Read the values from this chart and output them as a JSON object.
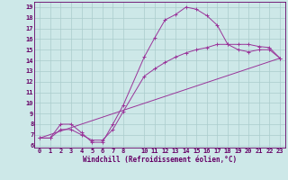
{
  "xlabel": "Windchill (Refroidissement éolien,°C)",
  "bg_color": "#cde8e8",
  "line_color": "#993399",
  "grid_color": "#aacccc",
  "xlim": [
    -0.5,
    23.5
  ],
  "ylim": [
    5.8,
    19.5
  ],
  "xticks": [
    0,
    1,
    2,
    3,
    4,
    5,
    6,
    7,
    8,
    10,
    11,
    12,
    13,
    14,
    15,
    16,
    17,
    18,
    19,
    20,
    21,
    22,
    23
  ],
  "yticks": [
    6,
    7,
    8,
    9,
    10,
    11,
    12,
    13,
    14,
    15,
    16,
    17,
    18,
    19
  ],
  "line1_x": [
    0,
    1,
    2,
    3,
    4,
    5,
    6,
    7,
    8,
    10,
    11,
    12,
    13,
    14,
    15,
    16,
    17,
    18,
    19,
    20,
    21,
    22,
    23
  ],
  "line1_y": [
    6.7,
    6.7,
    8.0,
    8.0,
    7.2,
    6.3,
    6.3,
    8.0,
    9.8,
    14.3,
    16.1,
    17.8,
    18.3,
    19.0,
    18.8,
    18.2,
    17.3,
    15.5,
    15.0,
    14.8,
    15.0,
    15.0,
    14.2
  ],
  "line2_x": [
    0,
    1,
    2,
    3,
    4,
    5,
    6,
    7,
    8,
    10,
    11,
    12,
    13,
    14,
    15,
    16,
    17,
    18,
    19,
    20,
    21,
    22,
    23
  ],
  "line2_y": [
    6.7,
    6.7,
    7.5,
    7.5,
    7.0,
    6.5,
    6.5,
    7.5,
    9.2,
    12.5,
    13.2,
    13.8,
    14.3,
    14.7,
    15.0,
    15.2,
    15.5,
    15.5,
    15.5,
    15.5,
    15.3,
    15.2,
    14.2
  ],
  "line3_x": [
    0,
    23
  ],
  "line3_y": [
    6.7,
    14.2
  ],
  "tick_fontsize": 5.0,
  "xlabel_fontsize": 5.5
}
